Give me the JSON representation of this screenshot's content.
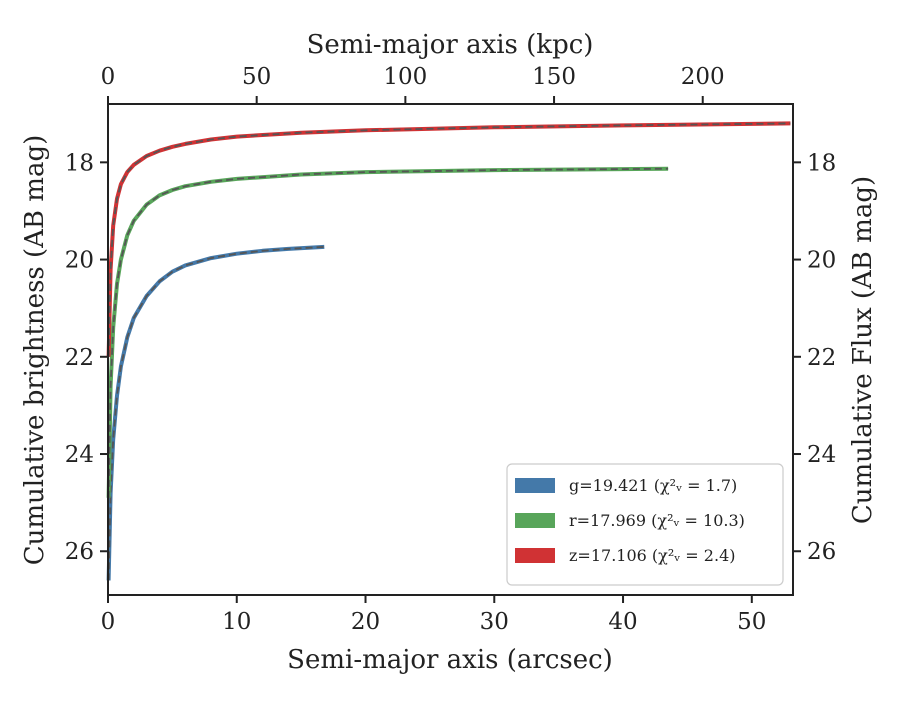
{
  "chart_data": {
    "type": "line",
    "title": "",
    "xlabel_bottom": "Semi-major axis (arcsec)",
    "xlabel_top": "Semi-major axis (kpc)",
    "ylabel_left": "Cumulative brightness (AB mag)",
    "ylabel_right": "Cumulative Flux (AB mag)",
    "xlim": [
      0,
      53.2
    ],
    "ylim": [
      26.9,
      16.8
    ],
    "y_inverted": true,
    "xticks_bottom": [
      0,
      10,
      20,
      30,
      40,
      50
    ],
    "xticks_top": [
      0,
      50,
      100,
      150,
      200
    ],
    "xticks_top_scale_kpc_per_arcsec": 4.33,
    "yticks": [
      18,
      20,
      22,
      24,
      26
    ],
    "grid": false,
    "legend_position": "lower-right",
    "model_line_style": "dashed",
    "series": [
      {
        "name": "g=19.421 (χ²ᵥ = 1.7)",
        "color": "#4479a9",
        "x": [
          0.05,
          0.2,
          0.4,
          0.7,
          1.0,
          1.5,
          2,
          3,
          4,
          5,
          6,
          8,
          10,
          12,
          14,
          16.8
        ],
        "y": [
          26.6,
          24.8,
          23.7,
          22.8,
          22.2,
          21.6,
          21.2,
          20.75,
          20.45,
          20.25,
          20.12,
          19.97,
          19.88,
          19.82,
          19.78,
          19.74
        ]
      },
      {
        "name": "r=17.969 (χ²ᵥ = 10.3)",
        "color": "#58a55a",
        "x": [
          0.05,
          0.2,
          0.4,
          0.7,
          1.0,
          1.5,
          2,
          3,
          4,
          5,
          6,
          8,
          10,
          15,
          20,
          30,
          40,
          43.5
        ],
        "y": [
          24.9,
          22.6,
          21.4,
          20.5,
          20.0,
          19.5,
          19.2,
          18.87,
          18.68,
          18.57,
          18.49,
          18.4,
          18.34,
          18.25,
          18.2,
          18.16,
          18.14,
          18.13
        ]
      },
      {
        "name": "z=17.106 (χ²ᵥ = 2.4)",
        "color": "#d03234",
        "x": [
          0.05,
          0.2,
          0.4,
          0.7,
          1.0,
          1.5,
          2,
          3,
          4,
          5,
          6,
          8,
          10,
          15,
          20,
          30,
          40,
          53
        ],
        "y": [
          22.0,
          20.2,
          19.3,
          18.75,
          18.45,
          18.2,
          18.05,
          17.87,
          17.76,
          17.68,
          17.62,
          17.53,
          17.47,
          17.39,
          17.34,
          17.28,
          17.24,
          17.2
        ]
      }
    ]
  }
}
